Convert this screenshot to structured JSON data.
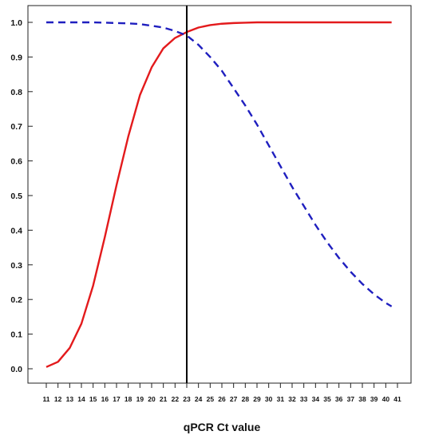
{
  "chart_data": {
    "type": "line",
    "title": "",
    "xlabel": "qPCR Ct value",
    "ylabel": "",
    "xlim": [
      11,
      41
    ],
    "ylim": [
      0,
      1
    ],
    "x_ticks": [
      11,
      12,
      13,
      14,
      15,
      16,
      17,
      18,
      19,
      20,
      21,
      22,
      23,
      24,
      25,
      26,
      27,
      28,
      29,
      30,
      31,
      32,
      33,
      34,
      35,
      36,
      37,
      38,
      39,
      40,
      41
    ],
    "y_ticks": [
      "0.0",
      "0.1",
      "0.2",
      "0.3",
      "0.4",
      "0.5",
      "0.6",
      "0.7",
      "0.8",
      "0.9",
      "1.0"
    ],
    "grid": false,
    "vertical_line_x": 23,
    "series": [
      {
        "color": "#e31a1c",
        "style": "solid",
        "x": [
          11,
          12,
          13,
          14,
          15,
          16,
          17,
          18,
          19,
          20,
          21,
          22,
          23,
          24,
          25,
          26,
          27,
          28,
          29,
          30,
          31,
          32,
          33,
          34,
          35,
          36,
          37,
          38,
          39,
          40,
          40.5
        ],
        "values": [
          0.005,
          0.02,
          0.06,
          0.13,
          0.24,
          0.38,
          0.53,
          0.67,
          0.79,
          0.87,
          0.925,
          0.955,
          0.972,
          0.985,
          0.992,
          0.996,
          0.998,
          0.999,
          1.0,
          1.0,
          1.0,
          1.0,
          1.0,
          1.0,
          1.0,
          1.0,
          1.0,
          1.0,
          1.0,
          1.0,
          1.0
        ]
      },
      {
        "color": "#1f1fbf",
        "style": "dashed",
        "x": [
          11,
          12,
          13,
          14,
          15,
          16,
          17,
          18,
          19,
          20,
          21,
          22,
          23,
          24,
          25,
          26,
          27,
          28,
          29,
          30,
          31,
          32,
          33,
          34,
          35,
          36,
          37,
          38,
          39,
          40,
          40.5
        ],
        "values": [
          1.0,
          1.0,
          1.0,
          1.0,
          1.0,
          0.999,
          0.998,
          0.997,
          0.995,
          0.99,
          0.985,
          0.975,
          0.962,
          0.935,
          0.9,
          0.86,
          0.81,
          0.76,
          0.705,
          0.645,
          0.585,
          0.525,
          0.47,
          0.415,
          0.365,
          0.32,
          0.28,
          0.245,
          0.215,
          0.19,
          0.18
        ]
      }
    ]
  }
}
